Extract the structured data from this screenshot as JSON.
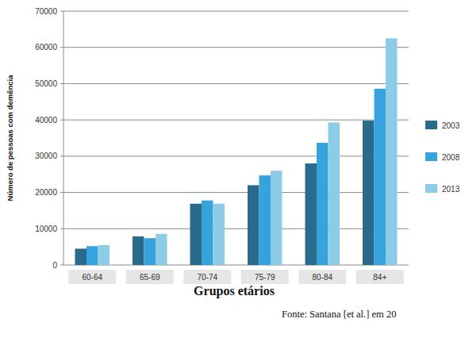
{
  "chart_data": {
    "type": "bar",
    "xlabel": "Grupos etários",
    "ylabel": "Número de pessoas com demência",
    "source": "Fonte: Santana [et al.] em 20",
    "categories": [
      "60-64",
      "65-69",
      "70-74",
      "75-79",
      "80-84",
      "84+"
    ],
    "series": [
      {
        "name": "2003",
        "color": "#2a6a8b",
        "values": [
          4500,
          7900,
          16900,
          22000,
          28000,
          39800
        ]
      },
      {
        "name": "2008",
        "color": "#36a3dd",
        "values": [
          5200,
          7400,
          17800,
          24700,
          33700,
          48600
        ]
      },
      {
        "name": "2013",
        "color": "#8dcce6",
        "values": [
          5500,
          8600,
          16900,
          26000,
          39300,
          62500
        ]
      }
    ],
    "ylim": [
      0,
      70000
    ],
    "yticks": [
      0,
      10000,
      20000,
      30000,
      40000,
      50000,
      60000,
      70000
    ],
    "grid": true,
    "legend": "right"
  }
}
